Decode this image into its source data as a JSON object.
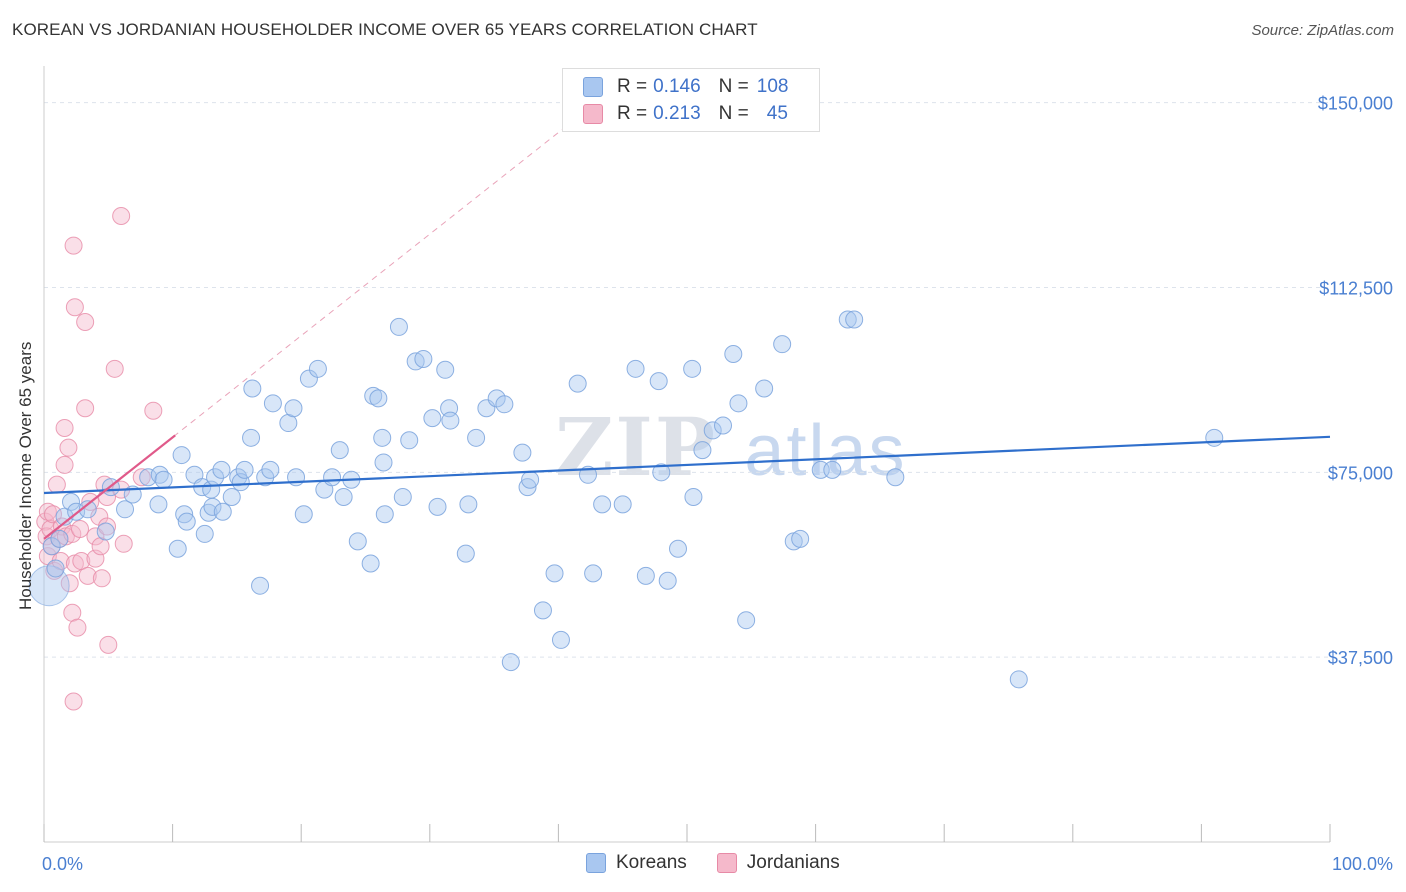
{
  "header": {
    "title": "KOREAN VS JORDANIAN HOUSEHOLDER INCOME OVER 65 YEARS CORRELATION CHART",
    "source": "Source: ZipAtlas.com"
  },
  "watermark": {
    "zip": "ZIP",
    "atlas": "atlas"
  },
  "legend": {
    "r_label": "R =",
    "n_label": "N =",
    "rows": [
      {
        "r": "0.146",
        "n": "108",
        "color": "#a9c7f0"
      },
      {
        "r": "0.213",
        "n": "45",
        "color": "#f5b9cb"
      }
    ]
  },
  "bottom_legend": [
    {
      "label": "Koreans",
      "color": "#a9c7f0"
    },
    {
      "label": "Jordanians",
      "color": "#f5b9cb"
    }
  ],
  "colors": {
    "korean_fill": "#a9c7f0",
    "korean_stroke": "#7aa3dd",
    "korean_line": "#2f6fcc",
    "jordanian_fill": "#f5b9cb",
    "jordanian_stroke": "#e78aa6",
    "jordanian_line": "#e05a8a",
    "axis_text": "#4a7fd1",
    "grid": "#dde3ec"
  },
  "chart_data": {
    "type": "scatter",
    "title": "KOREAN VS JORDANIAN HOUSEHOLDER INCOME OVER 65 YEARS CORRELATION CHART",
    "xlabel": "",
    "ylabel": "Householder Income Over 65 years",
    "xlim": [
      0,
      100
    ],
    "ylim": [
      0,
      155000
    ],
    "x_tick_labels": [
      "0.0%",
      "100.0%"
    ],
    "y_ticks": [
      37500,
      75000,
      112500,
      150000
    ],
    "y_tick_labels": [
      "$37,500",
      "$75,000",
      "$112,500",
      "$150,000"
    ],
    "grid": true,
    "legend_position": "top-center",
    "series": [
      {
        "name": "Koreans",
        "r": 0.146,
        "n": 108,
        "trend": {
          "x": [
            0,
            100
          ],
          "y": [
            70800,
            82200
          ]
        },
        "points": [
          [
            0.4,
            52000
          ],
          [
            0.6,
            60000
          ],
          [
            0.9,
            55500
          ],
          [
            1.2,
            61500
          ],
          [
            1.6,
            66000
          ],
          [
            2.1,
            69000
          ],
          [
            2.5,
            67000
          ],
          [
            3.4,
            67500
          ],
          [
            4.8,
            63000
          ],
          [
            5.2,
            72000
          ],
          [
            6.3,
            67500
          ],
          [
            6.9,
            70500
          ],
          [
            8.1,
            74000
          ],
          [
            8.9,
            68500
          ],
          [
            9.0,
            74500
          ],
          [
            9.3,
            73500
          ],
          [
            10.4,
            59500
          ],
          [
            10.7,
            78500
          ],
          [
            10.9,
            66500
          ],
          [
            11.1,
            65000
          ],
          [
            11.7,
            74500
          ],
          [
            12.3,
            72000
          ],
          [
            12.5,
            62500
          ],
          [
            12.8,
            66800
          ],
          [
            13.0,
            71500
          ],
          [
            13.1,
            68000
          ],
          [
            13.3,
            74000
          ],
          [
            13.8,
            75500
          ],
          [
            13.9,
            67000
          ],
          [
            14.6,
            70000
          ],
          [
            15.1,
            74000
          ],
          [
            15.3,
            73000
          ],
          [
            15.6,
            75500
          ],
          [
            16.1,
            82000
          ],
          [
            16.2,
            92000
          ],
          [
            16.8,
            52000
          ],
          [
            17.2,
            74000
          ],
          [
            17.6,
            75500
          ],
          [
            17.8,
            89000
          ],
          [
            19.0,
            85000
          ],
          [
            19.4,
            88000
          ],
          [
            19.6,
            74000
          ],
          [
            20.2,
            66500
          ],
          [
            20.6,
            94000
          ],
          [
            21.3,
            96000
          ],
          [
            21.8,
            71500
          ],
          [
            22.4,
            74000
          ],
          [
            23.0,
            79500
          ],
          [
            23.3,
            70000
          ],
          [
            23.9,
            73500
          ],
          [
            24.4,
            61000
          ],
          [
            25.4,
            56500
          ],
          [
            25.6,
            90500
          ],
          [
            26.0,
            90000
          ],
          [
            26.3,
            82000
          ],
          [
            26.4,
            77000
          ],
          [
            26.5,
            66500
          ],
          [
            27.6,
            104500
          ],
          [
            27.9,
            70000
          ],
          [
            28.4,
            81500
          ],
          [
            28.9,
            97500
          ],
          [
            29.5,
            98000
          ],
          [
            30.2,
            86000
          ],
          [
            30.6,
            68000
          ],
          [
            31.2,
            95800
          ],
          [
            31.5,
            88000
          ],
          [
            31.6,
            85500
          ],
          [
            32.8,
            58500
          ],
          [
            33.0,
            68500
          ],
          [
            33.6,
            82000
          ],
          [
            34.4,
            88000
          ],
          [
            35.2,
            90000
          ],
          [
            35.8,
            88800
          ],
          [
            36.3,
            36500
          ],
          [
            37.2,
            79000
          ],
          [
            37.6,
            72000
          ],
          [
            37.8,
            73500
          ],
          [
            38.8,
            47000
          ],
          [
            39.7,
            54500
          ],
          [
            40.2,
            41000
          ],
          [
            41.5,
            93000
          ],
          [
            42.3,
            74500
          ],
          [
            42.7,
            54500
          ],
          [
            43.4,
            68500
          ],
          [
            45.0,
            68500
          ],
          [
            46.0,
            96000
          ],
          [
            46.8,
            54000
          ],
          [
            47.8,
            93500
          ],
          [
            48.0,
            75000
          ],
          [
            48.5,
            53000
          ],
          [
            49.3,
            59500
          ],
          [
            50.4,
            96000
          ],
          [
            50.5,
            70000
          ],
          [
            51.2,
            79500
          ],
          [
            52.0,
            83500
          ],
          [
            52.8,
            84500
          ],
          [
            53.6,
            99000
          ],
          [
            54.0,
            89000
          ],
          [
            54.6,
            45000
          ],
          [
            56.0,
            92000
          ],
          [
            57.4,
            101000
          ],
          [
            58.3,
            61000
          ],
          [
            58.8,
            61500
          ],
          [
            60.4,
            75500
          ],
          [
            61.3,
            75500
          ],
          [
            62.5,
            106000
          ],
          [
            63.0,
            106000
          ],
          [
            66.2,
            74000
          ],
          [
            75.8,
            33000
          ],
          [
            91.0,
            82000
          ]
        ]
      },
      {
        "name": "Jordanians",
        "r": 0.213,
        "n": 45,
        "trend": {
          "x": [
            0,
            10.2
          ],
          "y": [
            61500,
            82500
          ]
        },
        "trend_extended": {
          "x": [
            0,
            41
          ],
          "y": [
            61500,
            146000
          ]
        },
        "points": [
          [
            0.1,
            65000
          ],
          [
            0.2,
            62000
          ],
          [
            0.3,
            67000
          ],
          [
            0.3,
            58000
          ],
          [
            0.5,
            63500
          ],
          [
            0.6,
            60000
          ],
          [
            0.7,
            66500
          ],
          [
            0.8,
            55000
          ],
          [
            1.0,
            72500
          ],
          [
            1.2,
            61500
          ],
          [
            1.3,
            57000
          ],
          [
            1.4,
            64000
          ],
          [
            1.6,
            84000
          ],
          [
            1.6,
            76500
          ],
          [
            1.7,
            62000
          ],
          [
            1.9,
            80000
          ],
          [
            2.0,
            52500
          ],
          [
            2.2,
            62500
          ],
          [
            2.2,
            46500
          ],
          [
            2.3,
            28500
          ],
          [
            2.3,
            121000
          ],
          [
            2.4,
            108500
          ],
          [
            2.4,
            56500
          ],
          [
            2.6,
            43500
          ],
          [
            2.8,
            63500
          ],
          [
            2.9,
            57000
          ],
          [
            3.2,
            105500
          ],
          [
            3.2,
            88000
          ],
          [
            3.4,
            54000
          ],
          [
            3.6,
            69000
          ],
          [
            4.0,
            57500
          ],
          [
            4.0,
            62000
          ],
          [
            4.3,
            66000
          ],
          [
            4.4,
            60000
          ],
          [
            4.5,
            53500
          ],
          [
            4.7,
            72500
          ],
          [
            4.9,
            64000
          ],
          [
            4.9,
            70000
          ],
          [
            5.0,
            40000
          ],
          [
            5.5,
            96000
          ],
          [
            6.0,
            71500
          ],
          [
            6.0,
            127000
          ],
          [
            6.2,
            60500
          ],
          [
            7.6,
            74000
          ],
          [
            8.5,
            87500
          ]
        ]
      }
    ]
  }
}
